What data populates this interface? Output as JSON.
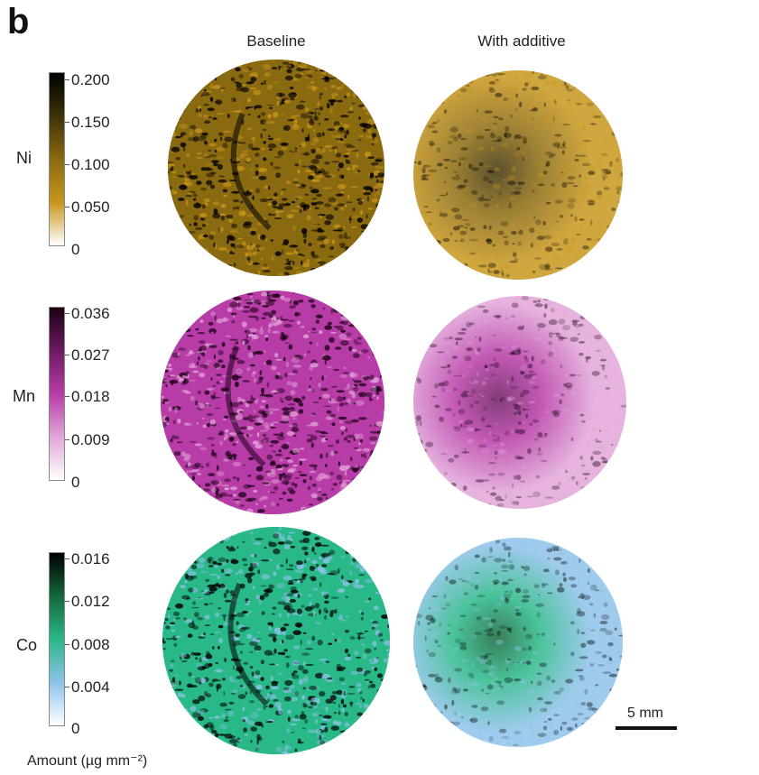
{
  "panel_label": "b",
  "columns": [
    "Baseline",
    "With additive"
  ],
  "rows": [
    {
      "element": "Ni",
      "ticks": [
        "0.200",
        "0.150",
        "0.100",
        "0.050",
        "0"
      ],
      "colormap": [
        "#ffffff",
        "#c8961c",
        "#8a6a10",
        "#3e3208",
        "#000000"
      ]
    },
    {
      "element": "Mn",
      "ticks": [
        "0.036",
        "0.027",
        "0.018",
        "0.009",
        "0"
      ],
      "colormap": [
        "#ffffff",
        "#e2a6d8",
        "#b83ca8",
        "#6e1a62",
        "#1a0016"
      ]
    },
    {
      "element": "Co",
      "ticks": [
        "0.016",
        "0.012",
        "0.008",
        "0.004",
        "0"
      ],
      "colormap": [
        "#ffffff",
        "#8ec2ea",
        "#29b888",
        "#14683a",
        "#000000"
      ]
    }
  ],
  "scale_bar": {
    "label": "5 mm"
  },
  "units_label": "Amount (µg mm⁻²)"
}
